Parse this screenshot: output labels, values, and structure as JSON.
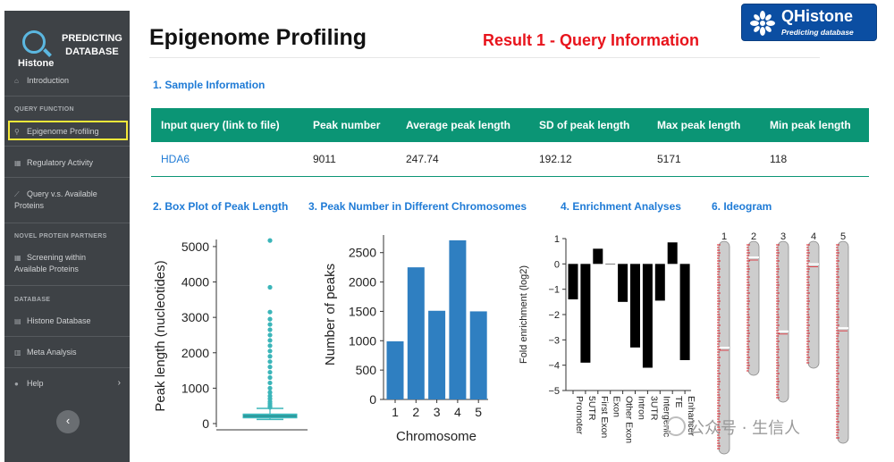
{
  "sidebar": {
    "logo": {
      "histone": "Histone",
      "title_line1": "PREDICTING",
      "title_line2": "DATABASE"
    },
    "items": {
      "introduction": "Introduction",
      "section_query": "QUERY FUNCTION",
      "epigenome": "Epigenome Profiling",
      "regulatory": "Regulatory Activity",
      "query_vs_line1": "Query v.s. Available",
      "query_vs_line2": "Proteins",
      "section_novel": "NOVEL PROTEIN PARTNERS",
      "screening_line1": "Screening within",
      "screening_line2": "Available Proteins",
      "section_database": "DATABASE",
      "histone_db": "Histone Database",
      "meta": "Meta Analysis",
      "help": "Help"
    },
    "active_item": "Epigenome Profiling",
    "collapse_glyph": "‹",
    "chevron_glyph": "›"
  },
  "header": {
    "title": "Epigenome Profiling",
    "result": "Result 1 - Query Information",
    "brand_name": "QHistone",
    "brand_sub": "Predicting database"
  },
  "sections": {
    "s1": "1. Sample Information",
    "s2": "2. Box Plot of Peak Length",
    "s3": "3. Peak Number in Different Chromosomes",
    "s4": "4. Enrichment Analyses",
    "s6": "6. Ideogram"
  },
  "table": {
    "headers": [
      "Input query (link to file)",
      "Peak number",
      "Average peak length",
      "SD of peak length",
      "Max peak length",
      "Min peak length"
    ],
    "row": [
      "HDA6",
      "9011",
      "247.74",
      "192.12",
      "5171",
      "118"
    ]
  },
  "watermark": "公众号 · 生信人",
  "colors": {
    "accent": "#0b9575",
    "link": "#1f7bd6",
    "result": "#e8141c",
    "sidebar": "#3e4246",
    "bar": "#2f7fc1",
    "box": "#3bb5b9"
  },
  "chart_data": [
    {
      "type": "box",
      "ylabel": "Peak length (nucleotides)",
      "ylim": [
        0,
        5200
      ],
      "yticks": [
        "0",
        "1000",
        "2000",
        "3000",
        "4000",
        "5000"
      ],
      "box": {
        "min": 118,
        "q1": 160,
        "median": 210,
        "q3": 270,
        "whisker_high": 430
      },
      "outliers": [
        5171,
        3850,
        3150,
        2950,
        2800,
        2650,
        2500,
        2350,
        2200,
        2050,
        1900,
        1750,
        1600,
        1450,
        1300,
        1150,
        1000,
        880,
        780,
        700,
        620,
        560,
        500,
        460
      ]
    },
    {
      "type": "bar",
      "xlabel": "Chromosome",
      "ylabel": "Number of peaks",
      "categories": [
        "1",
        "2",
        "3",
        "4",
        "5"
      ],
      "values": [
        990,
        2250,
        1510,
        2710,
        1500
      ],
      "ylim": [
        0,
        2800
      ],
      "yticks": [
        "0",
        "500",
        "1000",
        "1500",
        "2000",
        "2500"
      ]
    },
    {
      "type": "bar",
      "ylabel": "Fold enrichment (log2)",
      "categories": [
        "Promoter",
        "5UTR",
        "First Exon",
        "Exon",
        "Other Exon",
        "Intron",
        "3UTR",
        "Intergenic",
        "TE",
        "Enhancer"
      ],
      "values": [
        -1.4,
        -3.9,
        0.6,
        0.0,
        -1.5,
        -3.3,
        -4.1,
        -1.45,
        0.85,
        -3.8
      ],
      "ylim": [
        -5,
        1
      ],
      "yticks": [
        "1",
        "0",
        "−1",
        "−2",
        "−3",
        "−4",
        "−5"
      ]
    },
    {
      "type": "ideogram",
      "chromosomes": [
        "1",
        "2",
        "3",
        "4",
        "5"
      ]
    }
  ]
}
